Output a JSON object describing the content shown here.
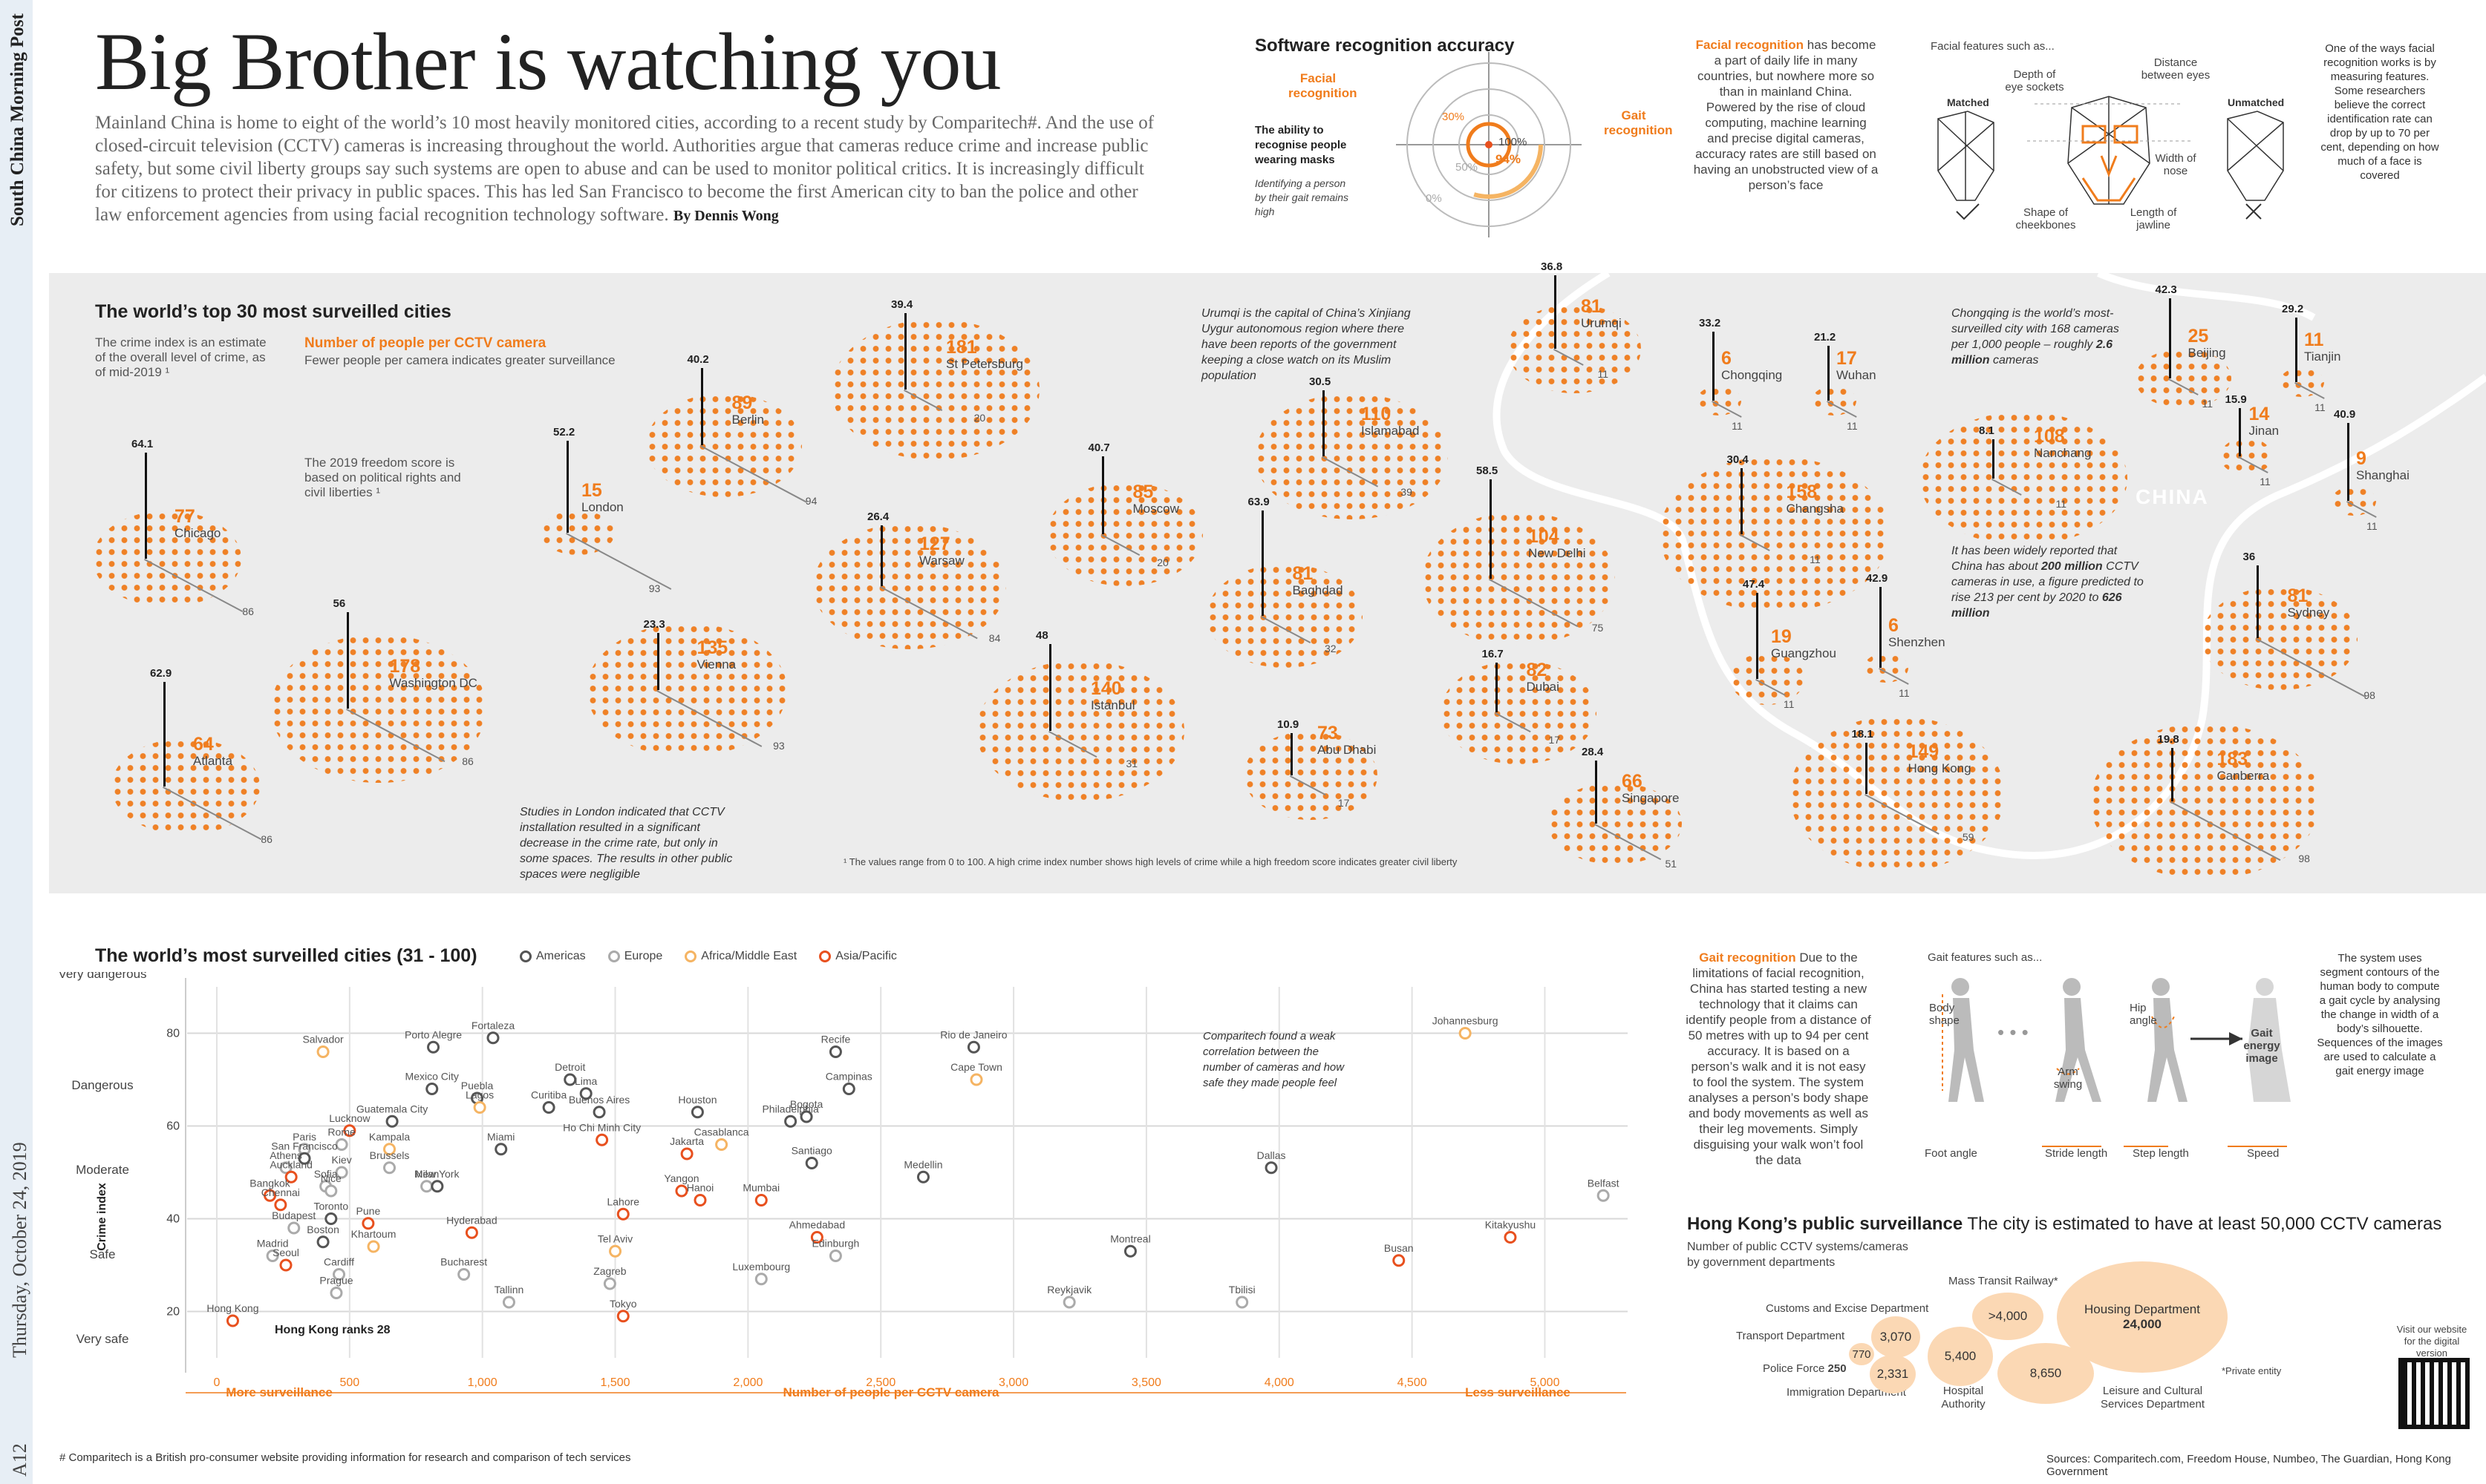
{
  "masthead": {
    "paper": "South China Morning Post",
    "page": "A12",
    "date": "Thursday, October 24, 2019"
  },
  "headline": "Big Brother is watching you",
  "intro": "Mainland China is home to eight of the world’s 10 most heavily monitored cities, according to a recent study by Comparitech#. And the use of closed-circuit television (CCTV) cameras is increasing throughout the world. Authorities argue that cameras reduce crime and increase public safety, but some civil liberty groups say such systems are open to abuse and can be used to monitor political critics. It is increasingly difficult for citizens to protect their privacy in public spaces. This has led San Francisco to become the first American city to ban the police and other law enforcement agencies from using facial recognition technology software.",
  "byline": "By Dennis Wong",
  "accuracy": {
    "title": "Software recognition accuracy",
    "facial_label": "Facial recognition",
    "gait_label": "Gait recognition",
    "masks_note": "The ability to recognise people wearing masks",
    "gait_note": "Identifying a person by their gait remains high",
    "rings": [
      "30%",
      "50%",
      "0%",
      "100%",
      "94%"
    ]
  },
  "facial": {
    "heading": "Facial recognition",
    "body": "has become a part of daily life in many countries, but nowhere more so than in mainland China. Powered by the rise of cloud computing, machine learning and precise digital cameras, accuracy rates are still based on having an unobstructed view of a person’s face",
    "features_title": "Facial features such as...",
    "labels": [
      "Depth of eye sockets",
      "Distance between eyes",
      "Width of nose",
      "Length of jawline",
      "Shape of cheekbones"
    ],
    "matched": "Matched",
    "unmatched": "Unmatched",
    "side_note": "One of the ways facial recognition works is by measuring features. Some researchers believe the correct identification rate can drop by up to 70 per cent, depending on how much of a face is covered"
  },
  "top30": {
    "title": "The world’s top 30 most surveilled cities",
    "crime_note": "The crime index is an estimate of the overall level of crime, as of mid-2019 ¹",
    "people_label": "Number of people per CCTV camera",
    "people_note": "Fewer people per camera indicates greater surveillance",
    "freedom_note": "The 2019 freedom score is based on political rights and civil liberties ¹",
    "london_note": "Studies in London indicated that CCTV installation resulted in a significant decrease in the crime rate, but only in some spaces. The results in other public spaces were negligible",
    "urumqi_note": "Urumqi is the capital of China’s Xinjiang Uygur autonomous region where there have been reports of the government keeping a close watch on its Muslim population",
    "chongqing_note_a": "Chongqing is the world’s most-surveilled city with 168 cameras per 1,000 people – roughly",
    "chongqing_note_b": "2.6 million",
    "chongqing_note_c": "cameras",
    "china_note_a": "It has been widely reported that China has about",
    "china_note_b": "200 million",
    "china_note_c": "CCTV cameras in use, a figure predicted to rise 213 per cent by 2020 to",
    "china_note_d": "626 million",
    "china_label": "CHINA",
    "footnote": "¹ The values range from 0 to 100. A high crime index number shows high levels of crime while a high freedom score indicates greater civil liberty",
    "cities": [
      {
        "name": "Chicago",
        "people": "77",
        "crime": "64.1",
        "freedom": "86"
      },
      {
        "name": "Atlanta",
        "people": "64",
        "crime": "62.9",
        "freedom": "86"
      },
      {
        "name": "Washington DC",
        "people": "178",
        "crime": "56",
        "freedom": "86"
      },
      {
        "name": "London",
        "people": "15",
        "crime": "52.2",
        "freedom": "93"
      },
      {
        "name": "Berlin",
        "people": "89",
        "crime": "40.2",
        "freedom": "94"
      },
      {
        "name": "Vienna",
        "people": "135",
        "crime": "23.3",
        "freedom": "93"
      },
      {
        "name": "St Petersburg",
        "people": "181",
        "crime": "39.4",
        "freedom": "20"
      },
      {
        "name": "Warsaw",
        "people": "127",
        "crime": "26.4",
        "freedom": "84"
      },
      {
        "name": "Moscow",
        "people": "85",
        "crime": "40.7",
        "freedom": "20"
      },
      {
        "name": "Istanbul",
        "people": "140",
        "crime": "48",
        "freedom": "31"
      },
      {
        "name": "Islamabad",
        "people": "110",
        "crime": "30.5",
        "freedom": "39"
      },
      {
        "name": "Baghdad",
        "people": "81",
        "crime": "63.9",
        "freedom": "32"
      },
      {
        "name": "Abu Dhabi",
        "people": "73",
        "crime": "10.9",
        "freedom": "17"
      },
      {
        "name": "New Delhi",
        "people": "104",
        "crime": "58.5",
        "freedom": "75"
      },
      {
        "name": "Dubai",
        "people": "82",
        "crime": "16.7",
        "freedom": "17"
      },
      {
        "name": "Singapore",
        "people": "66",
        "crime": "28.4",
        "freedom": "51"
      },
      {
        "name": "Urumqi",
        "people": "81",
        "crime": "36.8",
        "freedom": "11"
      },
      {
        "name": "Chongqing",
        "people": "6",
        "crime": "33.2",
        "freedom": "11"
      },
      {
        "name": "Wuhan",
        "people": "17",
        "crime": "21.2",
        "freedom": "11"
      },
      {
        "name": "Changsha",
        "people": "158",
        "crime": "30.4",
        "freedom": "11"
      },
      {
        "name": "Guangzhou",
        "people": "19",
        "crime": "47.4",
        "freedom": "11"
      },
      {
        "name": "Shenzhen",
        "people": "6",
        "crime": "42.9",
        "freedom": "11"
      },
      {
        "name": "Hong Kong",
        "people": "149",
        "crime": "18.1",
        "freedom": "59"
      },
      {
        "name": "Nanchang",
        "people": "108",
        "crime": "8.1",
        "freedom": "11"
      },
      {
        "name": "Beijing",
        "people": "25",
        "crime": "42.3",
        "freedom": "11"
      },
      {
        "name": "Tianjin",
        "people": "11",
        "crime": "29.2",
        "freedom": "11"
      },
      {
        "name": "Jinan",
        "people": "14",
        "crime": "15.9",
        "freedom": "11"
      },
      {
        "name": "Shanghai",
        "people": "9",
        "crime": "40.9",
        "freedom": "11"
      },
      {
        "name": "Sydney",
        "people": "81",
        "crime": "36",
        "freedom": "98"
      },
      {
        "name": "Canberra",
        "people": "183",
        "crime": "19.8",
        "freedom": "98"
      }
    ]
  },
  "scatter": {
    "title": "The world’s most surveilled cities (31 - 100)",
    "legend": [
      {
        "name": "Americas",
        "color": "#555555"
      },
      {
        "name": "Europe",
        "color": "#aaaaaa"
      },
      {
        "name": "Africa/Middle East",
        "color": "#f5b463"
      },
      {
        "name": "Asia/Pacific",
        "color": "#e8501e"
      }
    ],
    "ylabel": "Crime index",
    "xlabel": "Number of people per CCTV camera",
    "more": "More surveillance",
    "less": "Less surveillance",
    "ycats": [
      "Very dangerous",
      "Dangerous",
      "Moderate",
      "Safe",
      "Very safe"
    ],
    "note": "Comparitech found a weak correlation between the number of cameras and how safe they made people feel",
    "hk_note": "Hong Kong ranks 28"
  },
  "chart_data": {
    "type": "scatter",
    "xlabel": "Number of people per CCTV camera",
    "ylabel": "Crime index",
    "xlim": [
      0,
      5200
    ],
    "ylim": [
      10,
      90
    ],
    "xticks": [
      "0",
      "500",
      "1,000",
      "1,500",
      "2,000",
      "2,500",
      "3,000",
      "3,500",
      "4,000",
      "4,500",
      "5,000"
    ],
    "yticks": [
      "20",
      "40",
      "60",
      "80"
    ],
    "points": [
      {
        "name": "Salvador",
        "x": 400,
        "y": 76,
        "region": "af"
      },
      {
        "name": "Porto Alegre",
        "x": 815,
        "y": 77,
        "region": "am"
      },
      {
        "name": "Fortaleza",
        "x": 1040,
        "y": 79,
        "region": "am"
      },
      {
        "name": "Detroit",
        "x": 1330,
        "y": 70,
        "region": "am"
      },
      {
        "name": "Mexico City",
        "x": 810,
        "y": 68,
        "region": "am"
      },
      {
        "name": "Puebla",
        "x": 980,
        "y": 66,
        "region": "am"
      },
      {
        "name": "Lagos",
        "x": 990,
        "y": 64,
        "region": "af"
      },
      {
        "name": "Curitiba",
        "x": 1250,
        "y": 64,
        "region": "am"
      },
      {
        "name": "Lima",
        "x": 1390,
        "y": 67,
        "region": "am"
      },
      {
        "name": "Buenos Aires",
        "x": 1440,
        "y": 63,
        "region": "am"
      },
      {
        "name": "Houston",
        "x": 1810,
        "y": 63,
        "region": "am"
      },
      {
        "name": "Recife",
        "x": 2330,
        "y": 76,
        "region": "am"
      },
      {
        "name": "Rio de Janeiro",
        "x": 2850,
        "y": 77,
        "region": "am"
      },
      {
        "name": "Cape Town",
        "x": 2860,
        "y": 70,
        "region": "af"
      },
      {
        "name": "Johannesburg",
        "x": 4700,
        "y": 80,
        "region": "af"
      },
      {
        "name": "Campinas",
        "x": 2380,
        "y": 68,
        "region": "am"
      },
      {
        "name": "Bogota",
        "x": 2220,
        "y": 62,
        "region": "am"
      },
      {
        "name": "Philadelphia",
        "x": 2160,
        "y": 61,
        "region": "am"
      },
      {
        "name": "Guatemala City",
        "x": 660,
        "y": 61,
        "region": "am"
      },
      {
        "name": "Lucknow",
        "x": 500,
        "y": 59,
        "region": "as"
      },
      {
        "name": "Rome",
        "x": 470,
        "y": 56,
        "region": "eu"
      },
      {
        "name": "Kampala",
        "x": 650,
        "y": 55,
        "region": "af"
      },
      {
        "name": "Paris",
        "x": 330,
        "y": 55,
        "region": "eu"
      },
      {
        "name": "San Francisco",
        "x": 330,
        "y": 53,
        "region": "am"
      },
      {
        "name": "Brussels",
        "x": 650,
        "y": 51,
        "region": "eu"
      },
      {
        "name": "Athens",
        "x": 260,
        "y": 51,
        "region": "eu"
      },
      {
        "name": "Auckland",
        "x": 280,
        "y": 49,
        "region": "as"
      },
      {
        "name": "Kiev",
        "x": 470,
        "y": 50,
        "region": "eu"
      },
      {
        "name": "Bangkok",
        "x": 200,
        "y": 45,
        "region": "as"
      },
      {
        "name": "Sofia",
        "x": 410,
        "y": 47,
        "region": "eu"
      },
      {
        "name": "Nice",
        "x": 430,
        "y": 46,
        "region": "eu"
      },
      {
        "name": "Milan",
        "x": 790,
        "y": 47,
        "region": "eu"
      },
      {
        "name": "New York",
        "x": 830,
        "y": 47,
        "region": "am"
      },
      {
        "name": "Miami",
        "x": 1070,
        "y": 55,
        "region": "am"
      },
      {
        "name": "Ho Chi Minh City",
        "x": 1450,
        "y": 57,
        "region": "as"
      },
      {
        "name": "Jakarta",
        "x": 1770,
        "y": 54,
        "region": "as"
      },
      {
        "name": "Casablanca",
        "x": 1900,
        "y": 56,
        "region": "af"
      },
      {
        "name": "Santiago",
        "x": 2240,
        "y": 52,
        "region": "am"
      },
      {
        "name": "Medellin",
        "x": 2660,
        "y": 49,
        "region": "am"
      },
      {
        "name": "Dallas",
        "x": 3970,
        "y": 51,
        "region": "am"
      },
      {
        "name": "Belfast",
        "x": 5220,
        "y": 45,
        "region": "eu"
      },
      {
        "name": "Yangon",
        "x": 1750,
        "y": 46,
        "region": "as"
      },
      {
        "name": "Mumbai",
        "x": 2050,
        "y": 44,
        "region": "as"
      },
      {
        "name": "Lahore",
        "x": 1530,
        "y": 41,
        "region": "as"
      },
      {
        "name": "Hanoi",
        "x": 1820,
        "y": 44,
        "region": "as"
      },
      {
        "name": "Chennai",
        "x": 240,
        "y": 43,
        "region": "as"
      },
      {
        "name": "Toronto",
        "x": 430,
        "y": 40,
        "region": "am"
      },
      {
        "name": "Pune",
        "x": 570,
        "y": 39,
        "region": "as"
      },
      {
        "name": "Budapest",
        "x": 290,
        "y": 38,
        "region": "eu"
      },
      {
        "name": "Boston",
        "x": 400,
        "y": 35,
        "region": "am"
      },
      {
        "name": "Hyderabad",
        "x": 960,
        "y": 37,
        "region": "as"
      },
      {
        "name": "Khartoum",
        "x": 590,
        "y": 34,
        "region": "af"
      },
      {
        "name": "Madrid",
        "x": 210,
        "y": 32,
        "region": "eu"
      },
      {
        "name": "Seoul",
        "x": 260,
        "y": 30,
        "region": "as"
      },
      {
        "name": "Cardiff",
        "x": 460,
        "y": 28,
        "region": "eu"
      },
      {
        "name": "Tel Aviv",
        "x": 1500,
        "y": 33,
        "region": "af"
      },
      {
        "name": "Ahmedabad",
        "x": 2260,
        "y": 36,
        "region": "as"
      },
      {
        "name": "Edinburgh",
        "x": 2330,
        "y": 32,
        "region": "eu"
      },
      {
        "name": "Kitakyushu",
        "x": 4870,
        "y": 36,
        "region": "as"
      },
      {
        "name": "Busan",
        "x": 4450,
        "y": 31,
        "region": "as"
      },
      {
        "name": "Montreal",
        "x": 3440,
        "y": 33,
        "region": "am"
      },
      {
        "name": "Bucharest",
        "x": 930,
        "y": 28,
        "region": "eu"
      },
      {
        "name": "Zagreb",
        "x": 1480,
        "y": 26,
        "region": "eu"
      },
      {
        "name": "Luxembourg",
        "x": 2050,
        "y": 27,
        "region": "eu"
      },
      {
        "name": "Reykjavik",
        "x": 3210,
        "y": 22,
        "region": "eu"
      },
      {
        "name": "Tbilisi",
        "x": 3860,
        "y": 22,
        "region": "eu"
      },
      {
        "name": "Prague",
        "x": 450,
        "y": 24,
        "region": "eu"
      },
      {
        "name": "Tallinn",
        "x": 1100,
        "y": 22,
        "region": "eu"
      },
      {
        "name": "Tokyo",
        "x": 1530,
        "y": 19,
        "region": "as"
      },
      {
        "name": "Hong Kong",
        "x": 60,
        "y": 18,
        "region": "as"
      }
    ]
  },
  "gait": {
    "heading": "Gait recognition",
    "body": "Due to the limitations of facial recognition, China has started testing a new technology that it claims can identify people from a distance of 50 metres with up to 94 per cent accuracy. It is based on a person’s walk and it is not easy to fool the system. The system analyses a person’s body shape and body movements as well as their leg movements. Simply disguising your walk won’t fool the data",
    "features_title": "Gait features such as...",
    "labels": [
      "Body shape",
      "Arm swing",
      "Hip angle",
      "Gait energy image",
      "Foot angle",
      "Stride length",
      "Step length",
      "Speed"
    ],
    "side_note": "The system uses segment contours of the human body to compute a gait cycle by analysing the change in width of a body’s silhouette. Sequences of the images are used to calculate a gait energy image"
  },
  "hk": {
    "title": "Hong Kong’s public surveillance",
    "subtitle": "The city is estimated to have at least 50,000 CCTV cameras",
    "caption": "Number of public CCTV systems/cameras by government departments",
    "departments": [
      {
        "name": "Mass Transit Railway*",
        "value": ">4,000"
      },
      {
        "name": "Housing Department",
        "value": "24,000"
      },
      {
        "name": "Customs and Excise Department",
        "value": "770"
      },
      {
        "name": "Transport Department",
        "value": "3,070"
      },
      {
        "name": "Police Force",
        "value": "250"
      },
      {
        "name": "Immigration Department",
        "value": "2,331"
      },
      {
        "name": "Hospital Authority",
        "value": "5,400"
      },
      {
        "name": "Leisure and Cultural Services Department",
        "value": "8,650"
      }
    ],
    "private_note": "*Private entity",
    "visit": "Visit our website for the digital version"
  },
  "footer": {
    "comparitech": "# Comparitech is a British pro-consumer website providing information for research and comparison of tech services",
    "sources": "Sources: Comparitech.com, Freedom House, Numbeo, The Guardian, Hong Kong Government"
  }
}
